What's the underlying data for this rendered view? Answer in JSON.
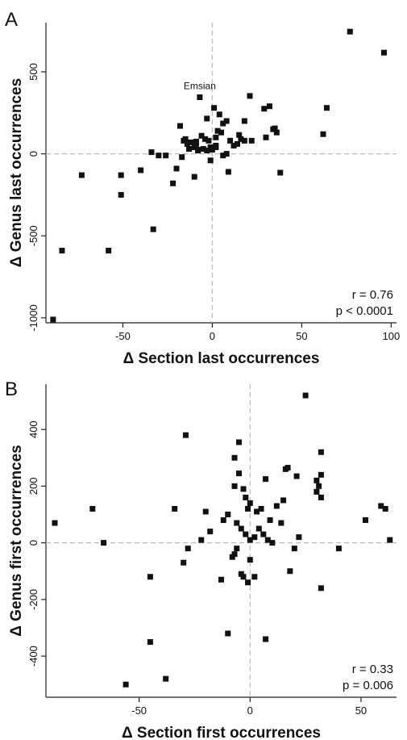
{
  "colors": {
    "marker": "#111111",
    "axis": "#222222",
    "refline": "#bbbbbb"
  },
  "chart_data": [
    {
      "type": "scatter",
      "panel_label": "A",
      "xlabel": "Δ Section last occurrences",
      "ylabel": "Δ Genus last occurrences",
      "xlim": [
        -93,
        103
      ],
      "ylim": [
        -1030,
        800
      ],
      "x_ticks": [
        -50,
        0,
        50,
        100
      ],
      "x_tick_labels": [
        "-50",
        "0",
        "50",
        "100"
      ],
      "y_ticks": [
        -1000,
        -500,
        0,
        500
      ],
      "y_tick_labels": [
        "-1000",
        "-500",
        "0",
        "500"
      ],
      "grid": false,
      "reference_lines": {
        "x": 0,
        "y": 0,
        "style": "dashed"
      },
      "stats": {
        "r": "r = 0.76",
        "p": "p < 0.0001"
      },
      "annotations": [
        {
          "text": "Emsian",
          "x": -7,
          "y": 345
        }
      ],
      "x": [
        77,
        96,
        -7,
        21,
        32,
        29,
        64,
        35,
        62,
        38,
        -3,
        1,
        4,
        6,
        8,
        5,
        18,
        15,
        34,
        36,
        30,
        -18,
        -15,
        -12,
        -9,
        -6,
        -4,
        -2,
        2,
        3,
        10,
        12,
        14,
        16,
        18,
        22,
        -20,
        -16,
        -13,
        -10,
        -8,
        -5,
        -3,
        -1,
        0,
        1,
        2,
        6,
        -1,
        -34,
        -26,
        -17,
        -8,
        -14,
        -9,
        8,
        9,
        -30,
        -10,
        2,
        -73,
        -51,
        -51,
        -40,
        -22,
        -33,
        -58,
        -84,
        -89
      ],
      "y": [
        745,
        617,
        345,
        353,
        290,
        275,
        280,
        155,
        120,
        -115,
        215,
        280,
        240,
        185,
        200,
        130,
        200,
        115,
        150,
        130,
        100,
        170,
        90,
        70,
        75,
        110,
        90,
        80,
        100,
        140,
        80,
        50,
        60,
        90,
        80,
        80,
        -90,
        80,
        30,
        40,
        20,
        30,
        20,
        40,
        25,
        40,
        50,
        -10,
        -40,
        10,
        -10,
        -20,
        25,
        60,
        60,
        0,
        -110,
        -10,
        -140,
        40,
        -130,
        -130,
        -250,
        -100,
        -180,
        -460,
        -590,
        -590,
        -1010
      ]
    },
    {
      "type": "scatter",
      "panel_label": "B",
      "xlabel": "Δ Section first occurrences",
      "ylabel": "Δ Genus first occurrences",
      "xlim": [
        -92,
        66
      ],
      "ylim": [
        -545,
        560
      ],
      "x_ticks": [
        -50,
        0,
        50
      ],
      "x_tick_labels": [
        "-50",
        "0",
        "50"
      ],
      "y_ticks": [
        -400,
        -200,
        0,
        200,
        400
      ],
      "y_tick_labels": [
        "-400",
        "-200",
        "0",
        "200",
        "400"
      ],
      "grid": false,
      "reference_lines": {
        "x": 0,
        "y": 0,
        "style": "dashed"
      },
      "stats": {
        "r": "r = 0.33",
        "p": "p = 0.006"
      },
      "annotations": [],
      "x": [
        25,
        32,
        17,
        16,
        32,
        30,
        21,
        7,
        31,
        30,
        32,
        -5,
        -29,
        -7,
        -5,
        -7,
        -3,
        -2,
        0,
        -1,
        3,
        5,
        9,
        12,
        14,
        15,
        -10,
        -6,
        -4,
        -2,
        0,
        2,
        4,
        6,
        8,
        10,
        -12,
        -18,
        -20,
        -22,
        -28,
        -30,
        -34,
        -45,
        -4,
        -7,
        -6,
        -8,
        2,
        0,
        -3,
        -1,
        20,
        22,
        40,
        52,
        59,
        61,
        63,
        -88,
        -71,
        -66,
        18,
        -13,
        -10,
        7,
        -38,
        -45,
        -56,
        32
      ],
      "y": [
        520,
        320,
        265,
        260,
        240,
        220,
        235,
        225,
        200,
        180,
        160,
        355,
        380,
        300,
        245,
        200,
        190,
        160,
        140,
        120,
        110,
        120,
        80,
        130,
        70,
        150,
        100,
        70,
        50,
        30,
        10,
        20,
        50,
        30,
        10,
        0,
        80,
        40,
        110,
        10,
        -20,
        -70,
        120,
        -120,
        -110,
        -40,
        -20,
        -50,
        -120,
        -60,
        -120,
        -140,
        -20,
        20,
        -20,
        80,
        130,
        120,
        10,
        70,
        120,
        0,
        -100,
        -130,
        -320,
        -340,
        -480,
        -350,
        -500,
        -160
      ]
    }
  ]
}
